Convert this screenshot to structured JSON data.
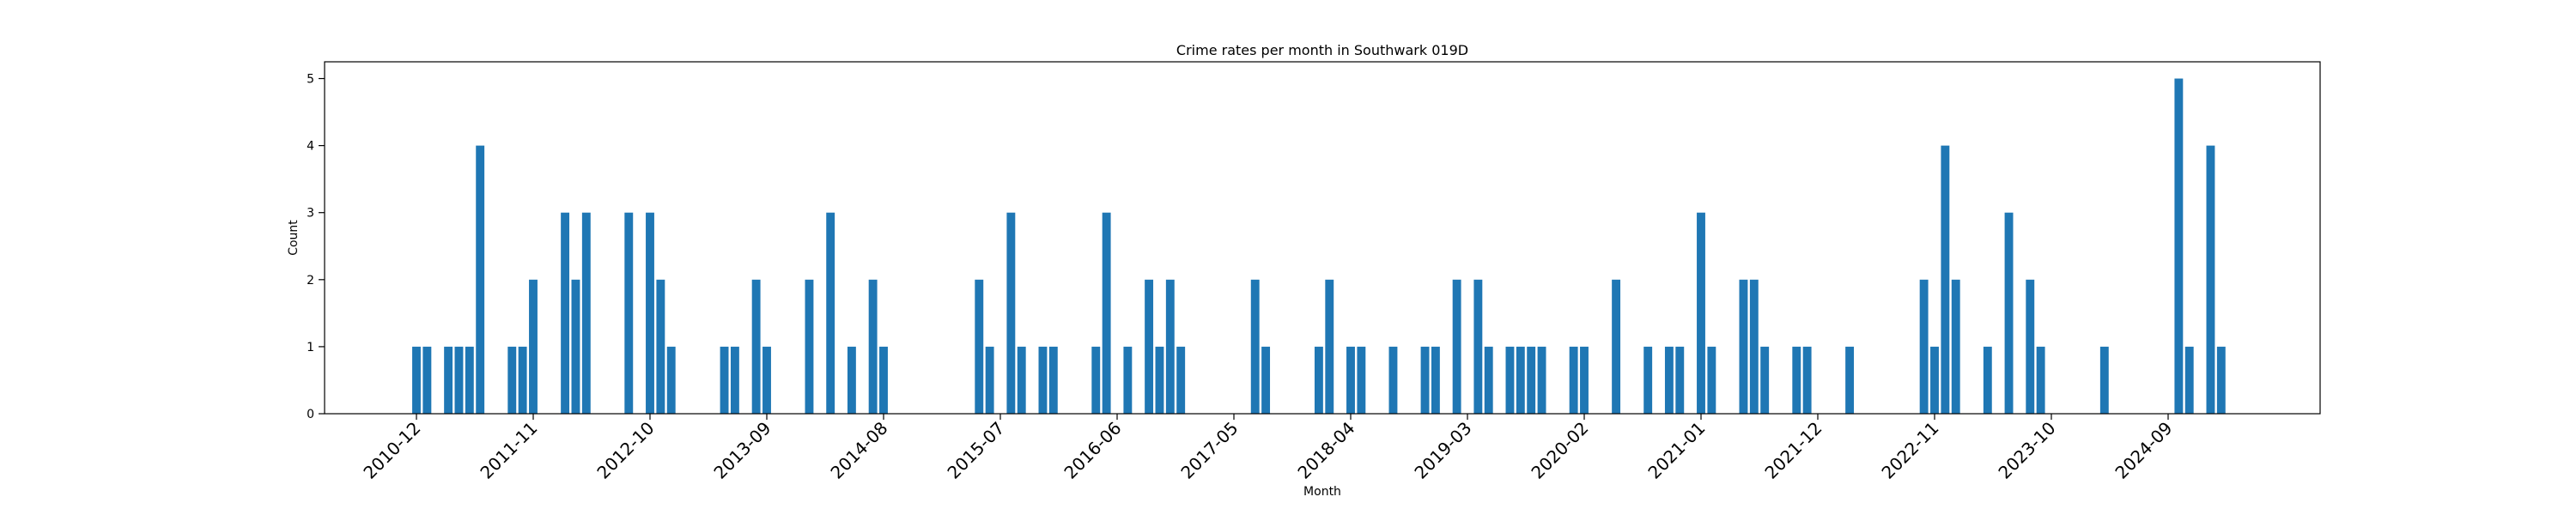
{
  "chart_data": {
    "type": "bar",
    "title": "Crime rates per month in Southwark 019D",
    "xlabel": "Month",
    "ylabel": "Count",
    "ylim": [
      0,
      5.25
    ],
    "yticks": [
      0,
      1,
      2,
      3,
      4,
      5
    ],
    "xtick_labels": [
      "2010-12",
      "2011-11",
      "2012-10",
      "2013-09",
      "2014-08",
      "2015-07",
      "2016-06",
      "2017-05",
      "2018-04",
      "2019-03",
      "2020-02",
      "2021-01",
      "2021-12",
      "2022-11",
      "2023-10",
      "2024-09"
    ],
    "grid": false,
    "bar_color": "#1f77b4",
    "x": [
      "2010-12",
      "2011-01",
      "2011-03",
      "2011-04",
      "2011-05",
      "2011-06",
      "2011-09",
      "2011-10",
      "2011-11",
      "2012-02",
      "2012-03",
      "2012-04",
      "2012-08",
      "2012-10",
      "2012-11",
      "2012-12",
      "2013-05",
      "2013-06",
      "2013-08",
      "2013-09",
      "2014-01",
      "2014-03",
      "2014-05",
      "2014-07",
      "2014-08",
      "2015-05",
      "2015-06",
      "2015-08",
      "2015-09",
      "2015-11",
      "2015-12",
      "2016-04",
      "2016-05",
      "2016-07",
      "2016-09",
      "2016-10",
      "2016-11",
      "2016-12",
      "2017-07",
      "2017-08",
      "2018-01",
      "2018-02",
      "2018-04",
      "2018-05",
      "2018-08",
      "2018-11",
      "2018-12",
      "2019-02",
      "2019-04",
      "2019-05",
      "2019-07",
      "2019-08",
      "2019-09",
      "2019-10",
      "2020-01",
      "2020-02",
      "2020-05",
      "2020-08",
      "2020-10",
      "2020-11",
      "2021-01",
      "2021-02",
      "2021-05",
      "2021-06",
      "2021-07",
      "2021-10",
      "2021-11",
      "2022-03",
      "2022-10",
      "2022-11",
      "2022-12",
      "2023-01",
      "2023-04",
      "2023-06",
      "2023-08",
      "2023-09",
      "2024-03",
      "2024-10",
      "2024-11",
      "2025-01",
      "2025-02"
    ],
    "values": [
      1,
      1,
      1,
      1,
      1,
      4,
      1,
      1,
      2,
      3,
      2,
      3,
      3,
      3,
      2,
      1,
      1,
      1,
      2,
      1,
      2,
      3,
      1,
      2,
      1,
      2,
      1,
      3,
      1,
      1,
      1,
      1,
      3,
      1,
      2,
      1,
      2,
      1,
      2,
      1,
      1,
      2,
      1,
      1,
      1,
      1,
      1,
      2,
      2,
      1,
      1,
      1,
      1,
      1,
      1,
      1,
      2,
      1,
      1,
      1,
      3,
      1,
      2,
      2,
      1,
      1,
      1,
      1,
      2,
      1,
      4,
      2,
      1,
      3,
      2,
      1,
      1,
      5,
      1,
      4,
      1
    ]
  }
}
